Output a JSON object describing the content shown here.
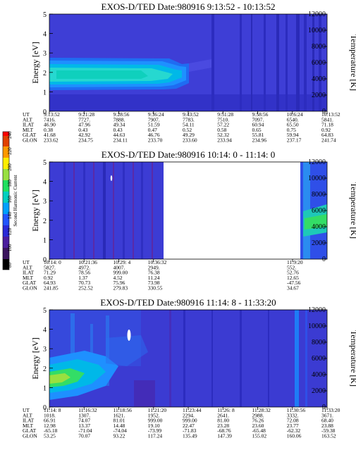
{
  "colorbar": {
    "label": "Second Harmonic Current",
    "ticks": [
      "80",
      "100",
      "120",
      "140",
      "160",
      "180",
      "200",
      "220",
      "240"
    ]
  },
  "chart_data": [
    {
      "type": "heatmap",
      "title": "EXOS-D/TED   Date:980916  9:13:52 - 10:13:52",
      "ylabel": "Energy [eV]",
      "y2label": "Temperature [K]",
      "ylim": [
        0,
        5
      ],
      "y2lim": [
        0,
        12000
      ],
      "yticks": [
        "0",
        "1",
        "2",
        "3",
        "4",
        "5"
      ],
      "y2ticks": [
        "0",
        "2000",
        "4000",
        "6000",
        "8000",
        "10000",
        "12000"
      ],
      "row_labels": [
        "UT",
        "ALT",
        "ILAT",
        "MLT",
        "GLAT",
        "GLON"
      ],
      "columns": [
        [
          "9:13:52",
          "7416.",
          "46.90",
          "0.38",
          "41.68",
          "233.62"
        ],
        [
          "9:21:28",
          "7727.",
          "47.96",
          "0.43",
          "42.92",
          "234.75"
        ],
        [
          "9:28:56",
          "7888.",
          "49.34",
          "0.43",
          "44.63",
          "234.11"
        ],
        [
          "9:36:24",
          "7907.",
          "51.59",
          "0.47",
          "46.76",
          "233.70"
        ],
        [
          "9:43:52",
          "7783.",
          "54.11",
          "0.52",
          "49.29",
          "233.60"
        ],
        [
          "9:51:28",
          "7510.",
          "57.22",
          "0.58",
          "52.32",
          "233.94"
        ],
        [
          "9:58:56",
          "7097.",
          "60.94",
          "0.65",
          "55.81",
          "234.96"
        ],
        [
          "10:6:24",
          "6540.",
          "65.50",
          "0.75",
          "59.94",
          "237.17"
        ],
        [
          "10:13:52",
          "5841.",
          "71.18",
          "0.92",
          "64.83",
          "241.74"
        ]
      ]
    },
    {
      "type": "heatmap",
      "title": "EXOS-D/TED   Date:980916  10:14: 0 - 11:14: 0",
      "ylabel": "Energy [eV]",
      "y2label": "Temperature [K]",
      "ylim": [
        0,
        5
      ],
      "y2lim": [
        0,
        12000
      ],
      "yticks": [
        "0",
        "1",
        "2",
        "3",
        "4",
        "5"
      ],
      "y2ticks": [
        "0",
        "2000",
        "4000",
        "6000",
        "8000",
        "10000",
        "12000"
      ],
      "row_labels": [
        "UT",
        "ALT",
        "ILAT",
        "MLT",
        "GLAT",
        "GLON"
      ],
      "columns": [
        [
          "10:14: 0",
          "5827.",
          "71.29",
          "0.92",
          "64.93",
          "241.85"
        ],
        [
          "10:21:36",
          "4972.",
          "78.56",
          "1.37",
          "70.73",
          "252.52"
        ],
        [
          "10:29: 4",
          "4007.",
          "999.00",
          "4.52",
          "75.96",
          "279.83"
        ],
        [
          "10:36:32",
          "2949.",
          "76.38",
          "11.24",
          "73.98",
          "330.55"
        ],
        [
          "11:9:20",
          "552.",
          "52.76",
          "12.65",
          "-47.56",
          "34.67"
        ]
      ]
    },
    {
      "type": "heatmap",
      "title": "EXOS-D/TED   Date:980916  11:14: 8 - 11:33:20",
      "ylabel": "Energy [eV]",
      "y2label": "Temperature [K]",
      "ylim": [
        0,
        5
      ],
      "y2lim": [
        0,
        12000
      ],
      "yticks": [
        "0",
        "1",
        "2",
        "3",
        "4",
        "5"
      ],
      "y2ticks": [
        "0",
        "2000",
        "4000",
        "6000",
        "8000",
        "10000",
        "12000"
      ],
      "row_labels": [
        "UT",
        "ALT",
        "ILAT",
        "MLT",
        "GLAT",
        "GLON"
      ],
      "columns": [
        [
          "11:14: 8",
          "1018.",
          "66.91",
          "12.98",
          "-65.18",
          "53.25"
        ],
        [
          "11:16:32",
          "1307.",
          "74.07",
          "13.37",
          "-71.04",
          "70.07"
        ],
        [
          "11:18:56",
          "1621.",
          "81.01",
          "14.48",
          "-74.04",
          "93.22"
        ],
        [
          "11:21:20",
          "1952.",
          "999.00",
          "19.10",
          "-73.99",
          "117.24"
        ],
        [
          "11:23:44",
          "2294.",
          "999.00",
          "22.47",
          "-71.83",
          "135.49"
        ],
        [
          "11:26: 8",
          "2641.",
          "81.00",
          "23.28",
          "-68.76",
          "147.39"
        ],
        [
          "11:28:32",
          "2988.",
          "76.26",
          "23.60",
          "-65.48",
          "155.02"
        ],
        [
          "11:30:56",
          "3332.",
          "72.08",
          "23.77",
          "-62.32",
          "160.06"
        ],
        [
          "11:33:20",
          "3671.",
          "68.40",
          "23.88",
          "-59.38",
          "163.52"
        ]
      ]
    }
  ]
}
